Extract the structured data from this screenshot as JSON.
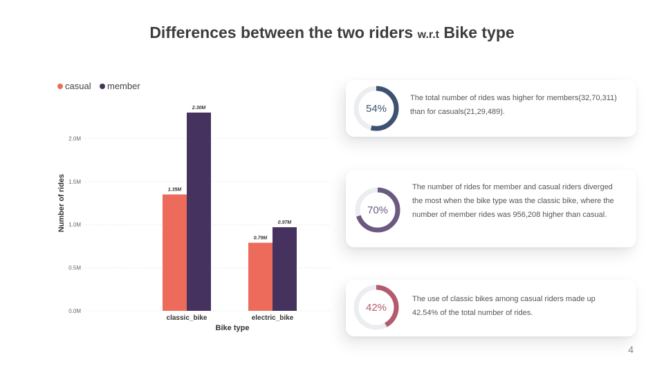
{
  "title": {
    "main": "Differences between the two riders ",
    "small": "w.r.t",
    "tail": " Bike type"
  },
  "chart_data": {
    "type": "bar",
    "categories": [
      "classic_bike",
      "electric_bike"
    ],
    "series": [
      {
        "name": "casual",
        "color": "#ec6b5b",
        "values": [
          1.35,
          0.79
        ],
        "labels": [
          "1.35M",
          "0.79M"
        ]
      },
      {
        "name": "member",
        "color": "#46325e",
        "values": [
          2.3,
          0.97
        ],
        "labels": [
          "2.30M",
          "0.97M"
        ]
      }
    ],
    "xlabel": "Bike type",
    "ylabel": "Number of rides",
    "ylim": [
      0,
      2.5
    ],
    "yticks": [
      0,
      0.5,
      1.0,
      1.5,
      2.0
    ],
    "ytick_labels": [
      "0.0M",
      "0.5M",
      "1.0M",
      "1.5M",
      "2.0M"
    ],
    "grid": true,
    "legend": "top-left"
  },
  "cards": [
    {
      "percent": 54,
      "label": "54%",
      "color": "#3d5270",
      "text": "The total number of rides was higher for members(32,70,311) than for casuals(21,29,489)."
    },
    {
      "percent": 70,
      "label": "70%",
      "color": "#6b5a80",
      "text": "The number of rides for member and casual riders diverged the most when the bike type was the classic bike, where the number of member rides was 956,208 higher than casual."
    },
    {
      "percent": 42,
      "label": "42%",
      "color": "#b45a6e",
      "text": "The use of classic bikes among casual riders made up 42.54% of the total number of rides."
    }
  ],
  "page_number": "4"
}
